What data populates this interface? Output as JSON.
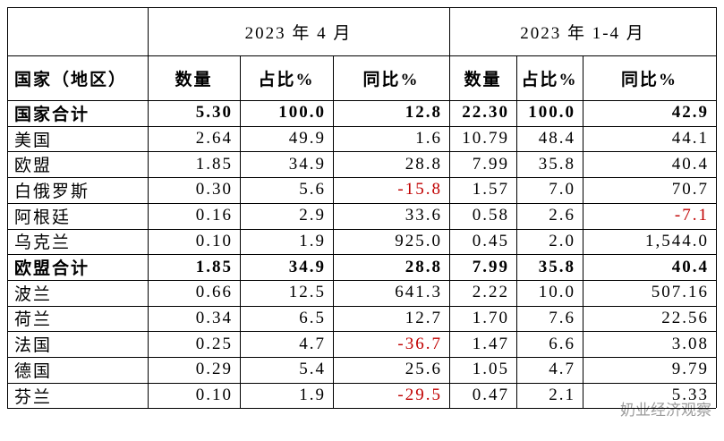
{
  "table": {
    "groups": [
      "2023 年 4 月",
      "2023 年 1-4 月"
    ],
    "columns": [
      "国家（地区）",
      "数量",
      "占比%",
      "同比%",
      "数量",
      "占比%",
      "同比%"
    ],
    "rows": [
      {
        "bold": true,
        "cells": [
          "国家合计",
          "5.30",
          "100.0",
          "12.8",
          "22.30",
          "100.0",
          "42.9"
        ]
      },
      {
        "bold": false,
        "cells": [
          "美国",
          "2.64",
          "49.9",
          "1.6",
          "10.79",
          "48.4",
          "44.1"
        ]
      },
      {
        "bold": false,
        "cells": [
          "欧盟",
          "1.85",
          "34.9",
          "28.8",
          "7.99",
          "35.8",
          "40.4"
        ]
      },
      {
        "bold": false,
        "cells": [
          "白俄罗斯",
          "0.30",
          "5.6",
          "-15.8",
          "1.57",
          "7.0",
          "70.7"
        ]
      },
      {
        "bold": false,
        "cells": [
          "阿根廷",
          "0.16",
          "2.9",
          "33.6",
          "0.58",
          "2.6",
          "-7.1"
        ]
      },
      {
        "bold": false,
        "cells": [
          "乌克兰",
          "0.10",
          "1.9",
          "925.0",
          "0.45",
          "2.0",
          "1,544.0"
        ]
      },
      {
        "bold": true,
        "cells": [
          "欧盟合计",
          "1.85",
          "34.9",
          "28.8",
          "7.99",
          "35.8",
          "40.4"
        ]
      },
      {
        "bold": false,
        "cells": [
          "波兰",
          "0.66",
          "12.5",
          "641.3",
          "2.22",
          "10.0",
          "507.16"
        ]
      },
      {
        "bold": false,
        "cells": [
          "荷兰",
          "0.34",
          "6.5",
          "12.7",
          "1.70",
          "7.6",
          "22.56"
        ]
      },
      {
        "bold": false,
        "cells": [
          "法国",
          "0.25",
          "4.7",
          "-36.7",
          "1.47",
          "6.6",
          "3.08"
        ]
      },
      {
        "bold": false,
        "cells": [
          "德国",
          "0.29",
          "5.4",
          "25.6",
          "1.05",
          "4.7",
          "9.79"
        ]
      },
      {
        "bold": false,
        "cells": [
          "芬兰",
          "0.10",
          "1.9",
          "-29.5",
          "0.47",
          "2.1",
          "5.33"
        ]
      }
    ]
  },
  "watermark": "奶业经济观察"
}
